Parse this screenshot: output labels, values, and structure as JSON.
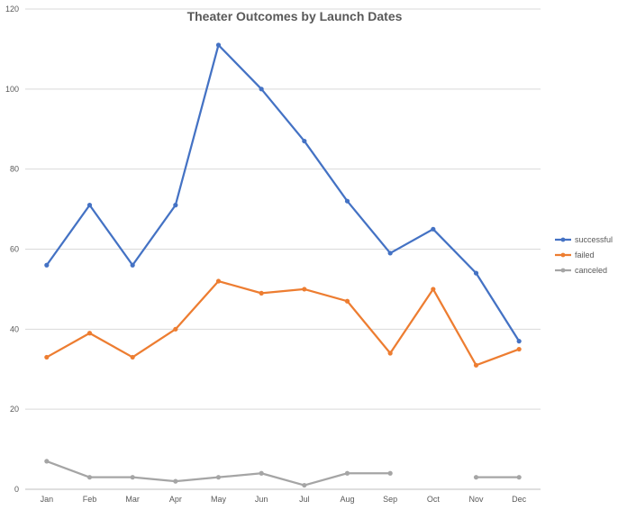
{
  "chart_data": {
    "type": "line",
    "title": "Theater Outcomes by Launch Dates",
    "xlabel": "",
    "ylabel": "",
    "categories": [
      "Jan",
      "Feb",
      "Mar",
      "Apr",
      "May",
      "Jun",
      "Jul",
      "Aug",
      "Sep",
      "Oct",
      "Nov",
      "Dec"
    ],
    "ylim": [
      0,
      120
    ],
    "yticks": [
      "0",
      "20",
      "40",
      "60",
      "80",
      "100",
      "120"
    ],
    "grid": true,
    "legend_position": "right",
    "series": [
      {
        "name": "successful",
        "color": "#4472c4",
        "values": [
          56,
          71,
          56,
          71,
          111,
          100,
          87,
          72,
          59,
          65,
          54,
          37
        ]
      },
      {
        "name": "failed",
        "color": "#ed7d31",
        "values": [
          33,
          39,
          33,
          40,
          52,
          49,
          50,
          47,
          34,
          50,
          31,
          35
        ]
      },
      {
        "name": "canceled",
        "color": "#a5a5a5",
        "values": [
          7,
          3,
          3,
          2,
          3,
          4,
          1,
          4,
          4,
          null,
          3,
          3
        ]
      }
    ]
  }
}
